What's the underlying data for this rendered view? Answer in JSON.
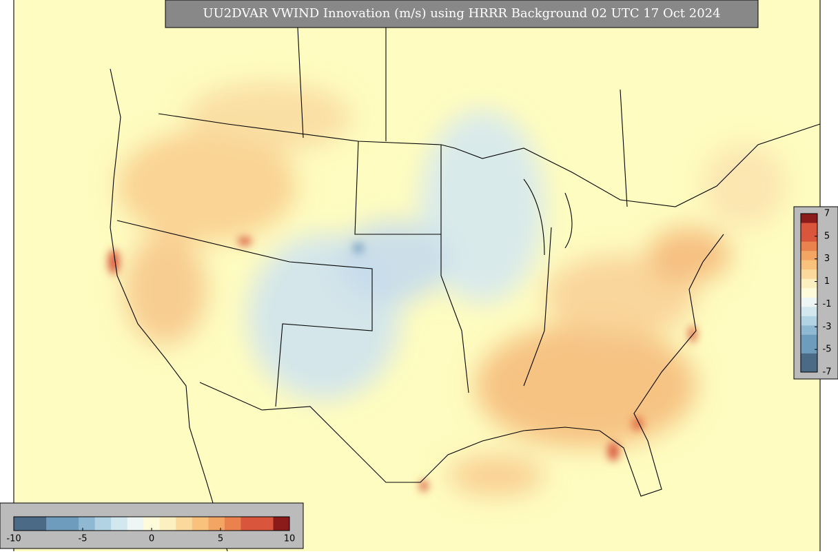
{
  "title": "UU2DVAR VWIND Innovation (m/s) using HRRR Background 02 UTC 17 Oct 2024",
  "bottom_colorbar": {
    "ticks": [
      -10,
      -5,
      0,
      5,
      10
    ]
  },
  "right_colorbar": {
    "ticks": [
      7,
      5,
      3,
      1,
      -1,
      -3,
      -5,
      -7
    ]
  }
}
